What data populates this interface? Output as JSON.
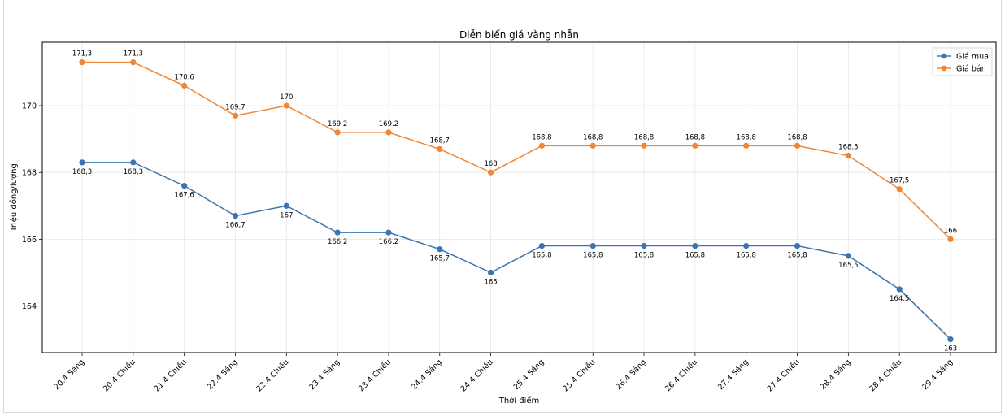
{
  "chart_data": {
    "type": "line",
    "title": "Diễn biến giá vàng nhẫn",
    "xlabel": "Thời điểm",
    "ylabel": "Triệu đồng/lượng",
    "categories": [
      "20.4 Sáng",
      "20.4 Chiều",
      "21.4 Chiều",
      "22.4 Sáng",
      "22.4 Chiều",
      "23.4 Sáng",
      "23.4 Chiều",
      "24.4 Sáng",
      "24.4 Chiều",
      "25.4 Sáng",
      "25.4 Chiều",
      "26.4 Sáng",
      "26.4 Chiều",
      "27.4 Sáng",
      "27.4 Chiều",
      "28.4 Sáng",
      "28.4 Chiều",
      "29.4 Sáng"
    ],
    "series": [
      {
        "name": "Giá mua",
        "color": "#3b75af",
        "values": [
          168.3,
          168.3,
          167.6,
          166.7,
          167,
          166.2,
          166.2,
          165.7,
          165,
          165.8,
          165.8,
          165.8,
          165.8,
          165.8,
          165.8,
          165.5,
          164.5,
          163
        ],
        "labels": [
          "168,3",
          "168,3",
          "167,6",
          "166,7",
          "167",
          "166.2",
          "166.2",
          "165,7",
          "165",
          "165,8",
          "165,8",
          "165,8",
          "165,8",
          "165,8",
          "165,8",
          "165,5",
          "164,5",
          "163"
        ]
      },
      {
        "name": "Giá bán",
        "color": "#ef8636",
        "values": [
          171.3,
          171.3,
          170.6,
          169.7,
          170,
          169.2,
          169.2,
          168.7,
          168,
          168.8,
          168.8,
          168.8,
          168.8,
          168.8,
          168.8,
          168.5,
          167.5,
          166
        ],
        "labels": [
          "171,3",
          "171,3",
          "170.6",
          "169.7",
          "170",
          "169.2",
          "169.2",
          "168,7",
          "168",
          "168,8",
          "168,8",
          "168,8",
          "168,8",
          "168,8",
          "168,8",
          "168.5",
          "167,5",
          "166"
        ]
      }
    ],
    "yticks": [
      164,
      166,
      168,
      170
    ],
    "ylim": [
      162.6,
      171.9
    ],
    "grid": true,
    "legend": "top-right"
  }
}
